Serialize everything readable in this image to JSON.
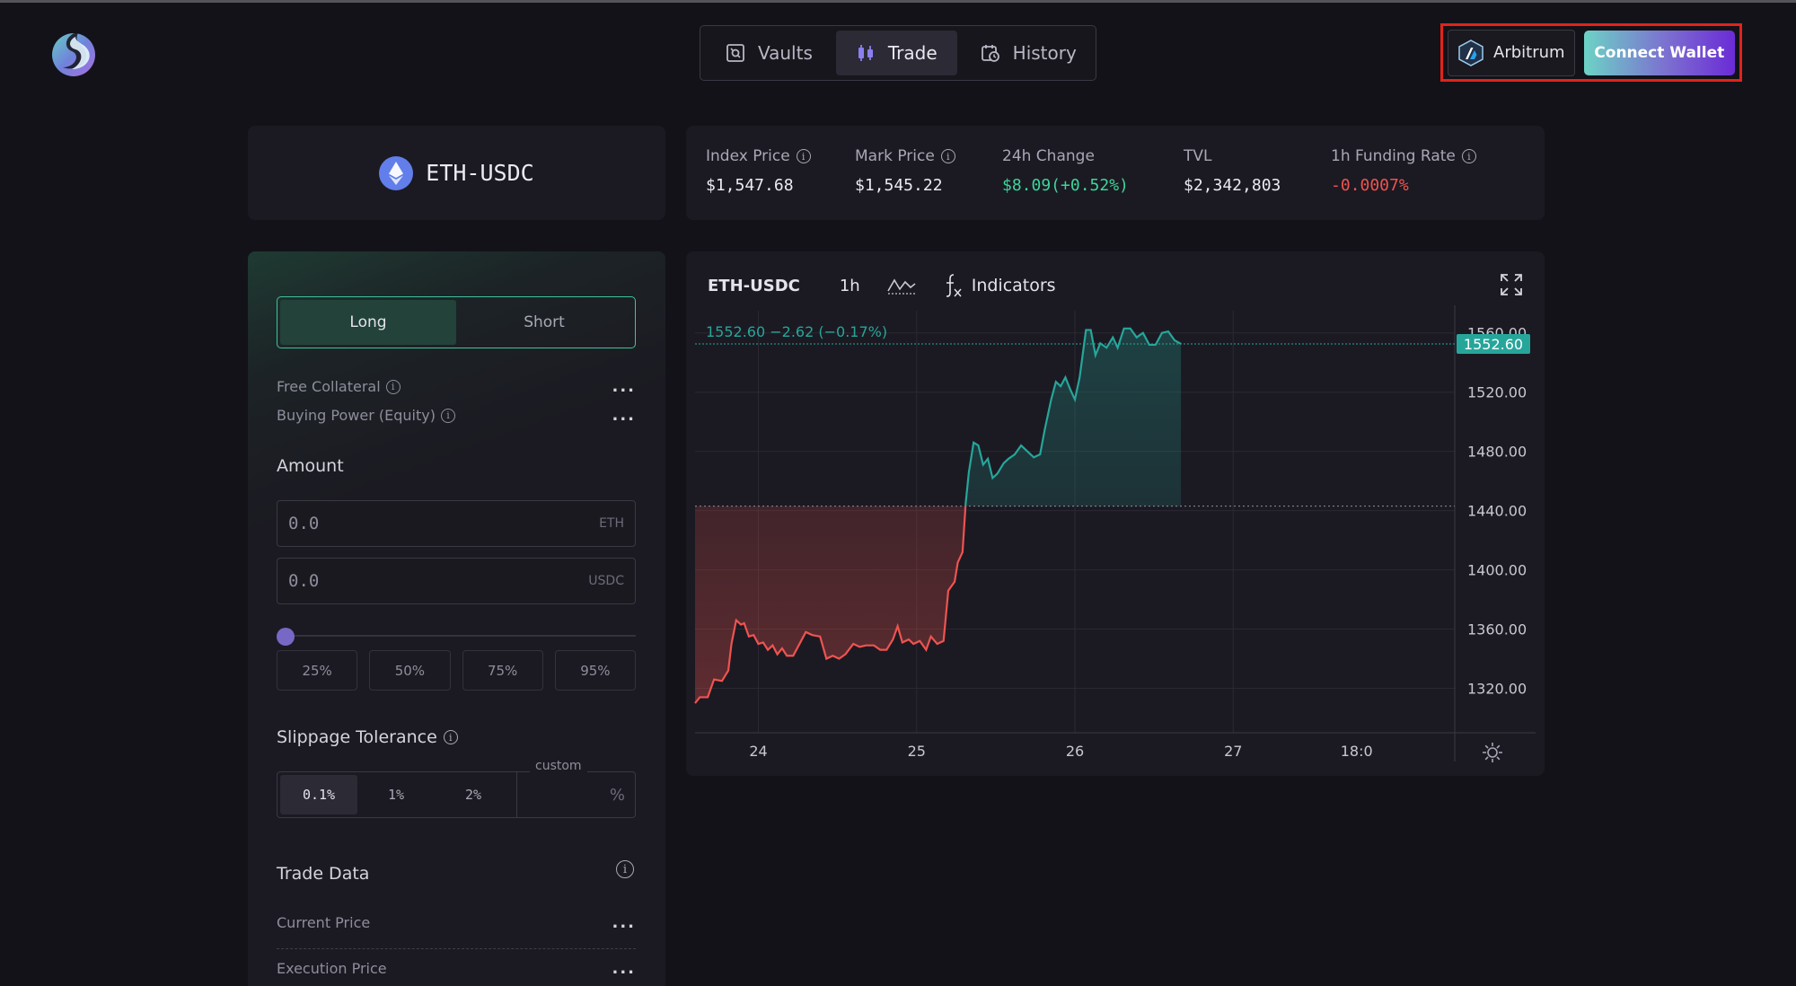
{
  "nav": {
    "items": [
      {
        "label": "Vaults",
        "icon": "vault-icon"
      },
      {
        "label": "Trade",
        "icon": "candlestick-icon"
      },
      {
        "label": "History",
        "icon": "history-icon"
      }
    ],
    "active": "Trade"
  },
  "wallet": {
    "chain_label": "Arbitrum",
    "connect_label": "Connect Wallet"
  },
  "market": {
    "pair": "ETH-USDC",
    "stats": [
      {
        "label": "Index Price",
        "value": "$1,547.68",
        "info": true,
        "color": "#eceaf1"
      },
      {
        "label": "Mark Price",
        "value": "$1,545.22",
        "info": true,
        "color": "#eceaf1"
      },
      {
        "label": "24h Change",
        "value": "$8.09(+0.52%)",
        "info": false,
        "color": "#3dd59b"
      },
      {
        "label": "TVL",
        "value": "$2,342,803",
        "info": false,
        "color": "#eceaf1"
      },
      {
        "label": "1h Funding Rate",
        "value": "-0.0007%",
        "info": true,
        "color": "#ef5350"
      }
    ]
  },
  "order": {
    "long_label": "Long",
    "short_label": "Short",
    "free_collateral_label": "Free Collateral",
    "free_collateral_value": "...",
    "buying_power_label": "Buying Power (Equity)",
    "buying_power_value": "...",
    "amount_title": "Amount",
    "amount_eth_placeholder": "0.0",
    "amount_eth_unit": "ETH",
    "amount_usdc_placeholder": "0.0",
    "amount_usdc_unit": "USDC",
    "slider_value": 0,
    "percent_buttons": [
      "25%",
      "50%",
      "75%",
      "95%"
    ],
    "slippage_title": "Slippage Tolerance",
    "slippage_options": [
      "0.1%",
      "1%",
      "2%"
    ],
    "slippage_selected": "0.1%",
    "slippage_custom_label": "custom",
    "slippage_custom_unit": "%",
    "trade_data_title": "Trade Data",
    "current_price_label": "Current Price",
    "current_price_value": "...",
    "execution_price_label": "Execution Price",
    "execution_price_value": "..."
  },
  "chart": {
    "symbol": "ETH-USDC",
    "interval": "1h",
    "indicators_label": "Indicators",
    "legend": "1552.60  −2.62 (−0.17%)",
    "last_price_label": "1552.60",
    "colors": {
      "up": "#26a69a",
      "down": "#ef5350",
      "grid": "#2a2932"
    }
  },
  "chart_data": {
    "type": "area",
    "title": "ETH-USDC",
    "x_ticks": [
      "24",
      "25",
      "26",
      "27",
      "18:0"
    ],
    "y_ticks": [
      1320,
      1360,
      1400,
      1440,
      1480,
      1520,
      1560
    ],
    "ylim": [
      1290,
      1575
    ],
    "baseline": 1443,
    "last_price": 1552.6,
    "x_range": [
      23.6,
      28.4
    ],
    "series": [
      {
        "x": 23.6,
        "y": 1310
      },
      {
        "x": 23.63,
        "y": 1314
      },
      {
        "x": 23.68,
        "y": 1314
      },
      {
        "x": 23.72,
        "y": 1326
      },
      {
        "x": 23.77,
        "y": 1325
      },
      {
        "x": 23.81,
        "y": 1332
      },
      {
        "x": 23.83,
        "y": 1350
      },
      {
        "x": 23.86,
        "y": 1366
      },
      {
        "x": 23.89,
        "y": 1363
      },
      {
        "x": 23.91,
        "y": 1364
      },
      {
        "x": 23.94,
        "y": 1355
      },
      {
        "x": 23.97,
        "y": 1356
      },
      {
        "x": 24.0,
        "y": 1350
      },
      {
        "x": 24.03,
        "y": 1351
      },
      {
        "x": 24.06,
        "y": 1346
      },
      {
        "x": 24.09,
        "y": 1349
      },
      {
        "x": 24.12,
        "y": 1343
      },
      {
        "x": 24.15,
        "y": 1347
      },
      {
        "x": 24.18,
        "y": 1342
      },
      {
        "x": 24.22,
        "y": 1342
      },
      {
        "x": 24.26,
        "y": 1350
      },
      {
        "x": 24.3,
        "y": 1358
      },
      {
        "x": 24.34,
        "y": 1356
      },
      {
        "x": 24.39,
        "y": 1355
      },
      {
        "x": 24.43,
        "y": 1340
      },
      {
        "x": 24.47,
        "y": 1342
      },
      {
        "x": 24.51,
        "y": 1340
      },
      {
        "x": 24.55,
        "y": 1343
      },
      {
        "x": 24.6,
        "y": 1350
      },
      {
        "x": 24.64,
        "y": 1348
      },
      {
        "x": 24.68,
        "y": 1349
      },
      {
        "x": 24.73,
        "y": 1349
      },
      {
        "x": 24.77,
        "y": 1346
      },
      {
        "x": 24.81,
        "y": 1346
      },
      {
        "x": 24.85,
        "y": 1353
      },
      {
        "x": 24.88,
        "y": 1362
      },
      {
        "x": 24.91,
        "y": 1351
      },
      {
        "x": 24.95,
        "y": 1353
      },
      {
        "x": 24.98,
        "y": 1350
      },
      {
        "x": 25.02,
        "y": 1352
      },
      {
        "x": 25.06,
        "y": 1346
      },
      {
        "x": 25.09,
        "y": 1355
      },
      {
        "x": 25.13,
        "y": 1350
      },
      {
        "x": 25.17,
        "y": 1352
      },
      {
        "x": 25.2,
        "y": 1386
      },
      {
        "x": 25.24,
        "y": 1392
      },
      {
        "x": 25.26,
        "y": 1405
      },
      {
        "x": 25.29,
        "y": 1412
      },
      {
        "x": 25.31,
        "y": 1445
      },
      {
        "x": 25.33,
        "y": 1466
      },
      {
        "x": 25.36,
        "y": 1486
      },
      {
        "x": 25.39,
        "y": 1484
      },
      {
        "x": 25.42,
        "y": 1471
      },
      {
        "x": 25.45,
        "y": 1475
      },
      {
        "x": 25.48,
        "y": 1462
      },
      {
        "x": 25.51,
        "y": 1465
      },
      {
        "x": 25.55,
        "y": 1472
      },
      {
        "x": 25.58,
        "y": 1475
      },
      {
        "x": 25.62,
        "y": 1478
      },
      {
        "x": 25.66,
        "y": 1484
      },
      {
        "x": 25.7,
        "y": 1480
      },
      {
        "x": 25.74,
        "y": 1476
      },
      {
        "x": 25.78,
        "y": 1478
      },
      {
        "x": 25.81,
        "y": 1495
      },
      {
        "x": 25.85,
        "y": 1515
      },
      {
        "x": 25.88,
        "y": 1527
      },
      {
        "x": 25.91,
        "y": 1524
      },
      {
        "x": 25.94,
        "y": 1530
      },
      {
        "x": 25.97,
        "y": 1522
      },
      {
        "x": 26.0,
        "y": 1515
      },
      {
        "x": 26.03,
        "y": 1530
      },
      {
        "x": 26.07,
        "y": 1562
      },
      {
        "x": 26.1,
        "y": 1562
      },
      {
        "x": 26.13,
        "y": 1545
      },
      {
        "x": 26.16,
        "y": 1553
      },
      {
        "x": 26.2,
        "y": 1550
      },
      {
        "x": 26.24,
        "y": 1557
      },
      {
        "x": 26.27,
        "y": 1550
      },
      {
        "x": 26.31,
        "y": 1563
      },
      {
        "x": 26.35,
        "y": 1563
      },
      {
        "x": 26.39,
        "y": 1557
      },
      {
        "x": 26.43,
        "y": 1560
      },
      {
        "x": 26.47,
        "y": 1552
      },
      {
        "x": 26.51,
        "y": 1552
      },
      {
        "x": 26.55,
        "y": 1560
      },
      {
        "x": 26.59,
        "y": 1561
      },
      {
        "x": 26.63,
        "y": 1555
      },
      {
        "x": 26.67,
        "y": 1552.6
      }
    ]
  }
}
